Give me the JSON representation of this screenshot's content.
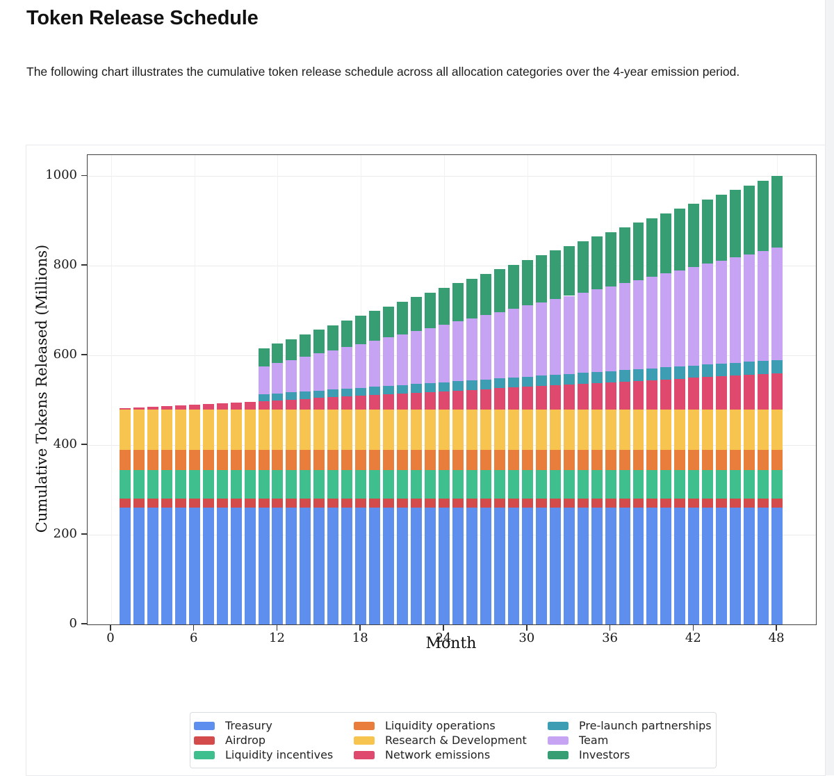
{
  "page": {
    "title": "Token Release Schedule",
    "paragraph": "The following chart illustrates the cumulative token release schedule across all allocation categories over the 4-year emission period."
  },
  "colors": {
    "page_bg": "#ffffff",
    "card_border": "#e7e9ec",
    "plot_spine": "#3f3f3f",
    "gridline": "#ebebeb",
    "scrollbar_track": "#f1f3f5"
  },
  "chart_data": {
    "type": "bar",
    "stacked": true,
    "title": "",
    "xlabel": "Month",
    "ylabel": "Cumulative Tokens Released (Millions)",
    "xlim": [
      -1.7,
      50.8
    ],
    "ylim": [
      0,
      1047
    ],
    "xticks": [
      0,
      6,
      12,
      18,
      24,
      30,
      36,
      42,
      48
    ],
    "yticks": [
      0,
      200,
      400,
      600,
      800,
      1000
    ],
    "grid": true,
    "bar_width_months": 0.8,
    "legend_position": "bottom-center, 3 columns",
    "x": [
      1,
      2,
      3,
      4,
      5,
      6,
      7,
      8,
      9,
      10,
      11,
      12,
      13,
      14,
      15,
      16,
      17,
      18,
      19,
      20,
      21,
      22,
      23,
      24,
      25,
      26,
      27,
      28,
      29,
      30,
      31,
      32,
      33,
      34,
      35,
      36,
      37,
      38,
      39,
      40,
      41,
      42,
      43,
      44,
      45,
      46,
      47,
      48
    ],
    "series": [
      {
        "name": "Treasury",
        "color": "#5f8fee",
        "values": [
          260,
          260,
          260,
          260,
          260,
          260,
          260,
          260,
          260,
          260,
          260,
          260,
          260,
          260,
          260,
          260,
          260,
          260,
          260,
          260,
          260,
          260,
          260,
          260,
          260,
          260,
          260,
          260,
          260,
          260,
          260,
          260,
          260,
          260,
          260,
          260,
          260,
          260,
          260,
          260,
          260,
          260,
          260,
          260,
          260,
          260,
          260,
          260
        ]
      },
      {
        "name": "Airdrop",
        "color": "#d44b4b",
        "values": [
          20,
          20,
          20,
          20,
          20,
          20,
          20,
          20,
          20,
          20,
          20,
          20,
          20,
          20,
          20,
          20,
          20,
          20,
          20,
          20,
          20,
          20,
          20,
          20,
          20,
          20,
          20,
          20,
          20,
          20,
          20,
          20,
          20,
          20,
          20,
          20,
          20,
          20,
          20,
          20,
          20,
          20,
          20,
          20,
          20,
          20,
          20,
          20
        ]
      },
      {
        "name": "Liquidity incentives",
        "color": "#3fbf8e",
        "values": [
          65,
          65,
          65,
          65,
          65,
          65,
          65,
          65,
          65,
          65,
          65,
          65,
          65,
          65,
          65,
          65,
          65,
          65,
          65,
          65,
          65,
          65,
          65,
          65,
          65,
          65,
          65,
          65,
          65,
          65,
          65,
          65,
          65,
          65,
          65,
          65,
          65,
          65,
          65,
          65,
          65,
          65,
          65,
          65,
          65,
          65,
          65,
          65
        ]
      },
      {
        "name": "Liquidity operations",
        "color": "#e87d3c",
        "values": [
          45,
          45,
          45,
          45,
          45,
          45,
          45,
          45,
          45,
          45,
          45,
          45,
          45,
          45,
          45,
          45,
          45,
          45,
          45,
          45,
          45,
          45,
          45,
          45,
          45,
          45,
          45,
          45,
          45,
          45,
          45,
          45,
          45,
          45,
          45,
          45,
          45,
          45,
          45,
          45,
          45,
          45,
          45,
          45,
          45,
          45,
          45,
          45
        ]
      },
      {
        "name": "Research & Development",
        "color": "#f6c44f",
        "values": [
          90,
          90,
          90,
          90,
          90,
          90,
          90,
          90,
          90,
          90,
          90,
          90,
          90,
          90,
          90,
          90,
          90,
          90,
          90,
          90,
          90,
          90,
          90,
          90,
          90,
          90,
          90,
          90,
          90,
          90,
          90,
          90,
          90,
          90,
          90,
          90,
          90,
          90,
          90,
          90,
          90,
          90,
          90,
          90,
          90,
          90,
          90,
          90
        ]
      },
      {
        "name": "Network emissions",
        "color": "#e0496e",
        "values": [
          1.7,
          3.3,
          5,
          6.7,
          8.3,
          10,
          11.7,
          13.3,
          15,
          16.7,
          18.3,
          20,
          21.7,
          23.3,
          25,
          26.7,
          28.3,
          30,
          31.7,
          33.3,
          35,
          36.7,
          38.3,
          40,
          41.7,
          43.3,
          45,
          46.7,
          48.3,
          50,
          51.7,
          53.3,
          55,
          56.7,
          58.3,
          60,
          61.7,
          63.3,
          65,
          66.7,
          68.3,
          70,
          71.7,
          73.3,
          75,
          76.7,
          78.3,
          80
        ]
      },
      {
        "name": "Pre-launch partnerships",
        "color": "#3d9eb3",
        "values": [
          0,
          0,
          0,
          0,
          0,
          0,
          0,
          0,
          0,
          0,
          15,
          15.4,
          15.8,
          16.2,
          16.6,
          17,
          17.4,
          17.8,
          18.2,
          18.6,
          19.1,
          19.5,
          19.9,
          20.3,
          20.7,
          21.1,
          21.5,
          21.9,
          22.3,
          22.7,
          23.1,
          23.5,
          23.9,
          24.3,
          24.7,
          25.1,
          25.5,
          25.9,
          26.4,
          26.8,
          27.2,
          27.6,
          28,
          28.4,
          28.8,
          29.2,
          29.6,
          30
        ]
      },
      {
        "name": "Team",
        "color": "#c7a4f3",
        "values": [
          0,
          0,
          0,
          0,
          0,
          0,
          0,
          0,
          0,
          0,
          62.5,
          67.6,
          72.6,
          77.7,
          82.8,
          87.8,
          92.9,
          98,
          103,
          108.1,
          113.2,
          118.2,
          123.3,
          128.4,
          133.4,
          138.5,
          143.6,
          148.6,
          153.7,
          158.8,
          163.9,
          168.9,
          174,
          179.1,
          184.1,
          189.2,
          194.3,
          199.3,
          204.4,
          209.5,
          214.5,
          219.6,
          224.7,
          229.7,
          234.8,
          239.9,
          244.9,
          250
        ]
      },
      {
        "name": "Investors",
        "color": "#369e72",
        "values": [
          0,
          0,
          0,
          0,
          0,
          0,
          0,
          0,
          0,
          0,
          40,
          43.2,
          46.5,
          49.7,
          53,
          56.2,
          59.5,
          62.7,
          65.9,
          69.2,
          72.4,
          75.7,
          78.9,
          82.2,
          85.4,
          88.6,
          91.9,
          95.1,
          98.4,
          101.6,
          104.9,
          108.1,
          111.4,
          114.6,
          117.8,
          121.1,
          124.3,
          127.6,
          130.8,
          134.1,
          137.3,
          140.5,
          143.8,
          147,
          150.3,
          153.5,
          156.8,
          160
        ]
      }
    ]
  }
}
